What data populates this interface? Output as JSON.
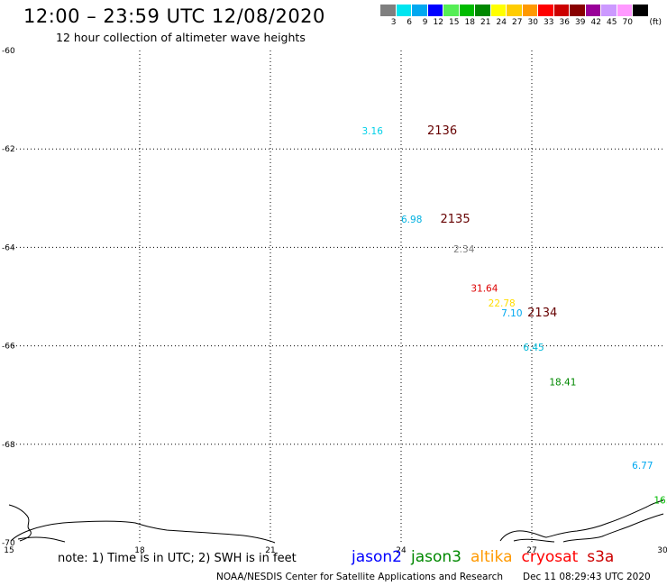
{
  "header": {
    "title": "12:00 – 23:59 UTC 12/08/2020",
    "subtitle": "12 hour collection of altimeter wave heights"
  },
  "color_scale": {
    "unit": "(ft)",
    "bins": [
      {
        "label": "3",
        "color": "#7f7f7f"
      },
      {
        "label": "6",
        "color": "#00e5f0"
      },
      {
        "label": "9",
        "color": "#00a8f0"
      },
      {
        "label": "12",
        "color": "#0000ff"
      },
      {
        "label": "15",
        "color": "#55ee55"
      },
      {
        "label": "18",
        "color": "#00bb00"
      },
      {
        "label": "21",
        "color": "#008800"
      },
      {
        "label": "24",
        "color": "#ffff00"
      },
      {
        "label": "27",
        "color": "#ffcc00"
      },
      {
        "label": "30",
        "color": "#ff9900"
      },
      {
        "label": "33",
        "color": "#ff0000"
      },
      {
        "label": "36",
        "color": "#cc0000"
      },
      {
        "label": "39",
        "color": "#880000"
      },
      {
        "label": "42",
        "color": "#990099"
      },
      {
        "label": "45",
        "color": "#cc99ff"
      },
      {
        "label": "70",
        "color": "#ff99ff"
      },
      {
        "label": "",
        "color": "#000000"
      }
    ]
  },
  "map": {
    "lon_ticks": [
      "15",
      "18",
      "21",
      "24",
      "27",
      "30"
    ],
    "lat_ticks": [
      "-60",
      "-62",
      "-64",
      "-66",
      "-68",
      "-70"
    ],
    "lon_range": [
      15,
      30
    ],
    "lat_range": [
      -70,
      -60
    ],
    "track_times": [
      {
        "text": "2136",
        "lon": 24.6,
        "lat": -61.7,
        "color": "#660000"
      },
      {
        "text": "2135",
        "lon": 24.9,
        "lat": -63.5,
        "color": "#660000"
      },
      {
        "text": "2134",
        "lon": 26.9,
        "lat": -65.4,
        "color": "#660000"
      }
    ],
    "observations": [
      {
        "text": "3.16",
        "lon": 23.1,
        "lat": -61.7,
        "color": "#00d0e8"
      },
      {
        "text": "6.98",
        "lon": 24.0,
        "lat": -63.5,
        "color": "#00b0e0"
      },
      {
        "text": "2.34",
        "lon": 25.2,
        "lat": -64.1,
        "color": "#808080"
      },
      {
        "text": "31.64",
        "lon": 25.6,
        "lat": -64.9,
        "color": "#dd0000"
      },
      {
        "text": "22.78",
        "lon": 26.0,
        "lat": -65.2,
        "color": "#ffdd00"
      },
      {
        "text": "7.10",
        "lon": 26.3,
        "lat": -65.4,
        "color": "#00a8f0"
      },
      {
        "text": "6.45",
        "lon": 26.8,
        "lat": -66.1,
        "color": "#00b8d8"
      },
      {
        "text": "18.41",
        "lon": 27.4,
        "lat": -66.8,
        "color": "#008800"
      },
      {
        "text": "6.77",
        "lon": 29.3,
        "lat": -68.5,
        "color": "#00a8f0"
      },
      {
        "text": "16.",
        "lon": 29.8,
        "lat": -69.2,
        "color": "#00bb00"
      }
    ]
  },
  "footer": {
    "note": "note: 1) Time is in UTC; 2) SWH is in feet",
    "satellites": [
      {
        "name": "jason2",
        "color": "#0000ff"
      },
      {
        "name": "jason3",
        "color": "#008800"
      },
      {
        "name": "altika",
        "color": "#ff9900"
      },
      {
        "name": "cryosat",
        "color": "#ff0000"
      },
      {
        "name": "s3a",
        "color": "#cc0000"
      }
    ],
    "credit": "NOAA/NESDIS Center for Satellite Applications and Research",
    "timestamp": "Dec 11 08:29:43 UTC 2020"
  }
}
